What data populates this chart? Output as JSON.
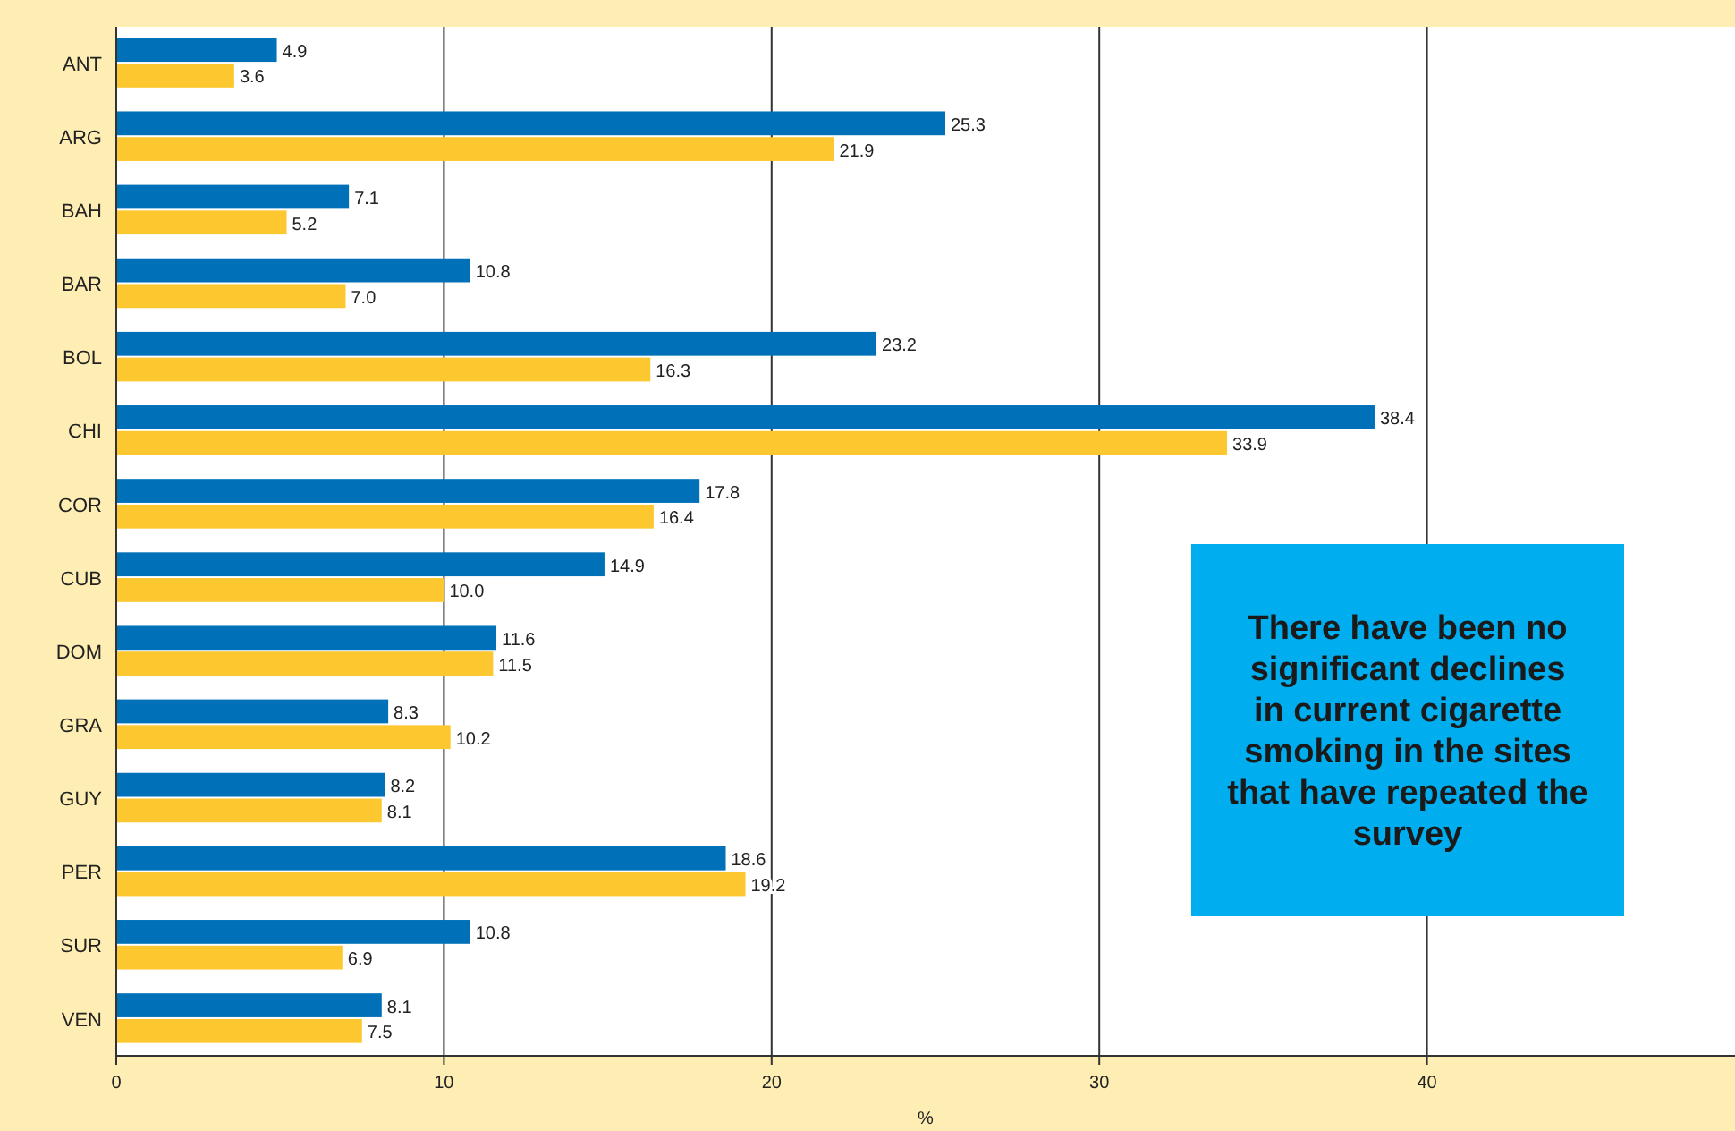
{
  "chart_data": {
    "type": "bar",
    "orientation": "horizontal",
    "xlabel": "%",
    "categories": [
      "ANT",
      "ARG",
      "BAH",
      "BAR",
      "BOL",
      "CHI",
      "COR",
      "CUB",
      "DOM",
      "GRA",
      "GUY",
      "PER",
      "SUR",
      "VEN"
    ],
    "series": [
      {
        "color": "#0070b8",
        "values": [
          4.9,
          25.3,
          7.1,
          10.8,
          23.2,
          38.4,
          17.8,
          14.9,
          11.6,
          8.3,
          8.2,
          18.6,
          10.8,
          8.1
        ]
      },
      {
        "color": "#fdc82f",
        "values": [
          3.6,
          21.9,
          5.2,
          7.0,
          16.3,
          33.9,
          16.4,
          10.0,
          11.5,
          10.2,
          8.1,
          19.2,
          6.9,
          7.5
        ]
      }
    ],
    "value_labels": [
      [
        "4.9",
        "25.3",
        "7.1",
        "10.8",
        "23.2",
        "38.4",
        "17.8",
        "14.9",
        "11.6",
        "8.3",
        "8.2",
        "18.6",
        "10.8",
        "8.1"
      ],
      [
        "3.6",
        "21.9",
        "5.2",
        "7.0",
        "16.3",
        "33.9",
        "16.4",
        "10.0",
        "11.5",
        "10.2",
        "8.1",
        "19.2",
        "6.9",
        "7.5"
      ]
    ],
    "xlim": [
      0,
      49.4
    ],
    "xticks": [
      0,
      10,
      20,
      30,
      40
    ],
    "grid": "x",
    "annotations": [
      "There have been no significant declines in current cigarette smoking in the sites that have repeated the survey"
    ]
  }
}
